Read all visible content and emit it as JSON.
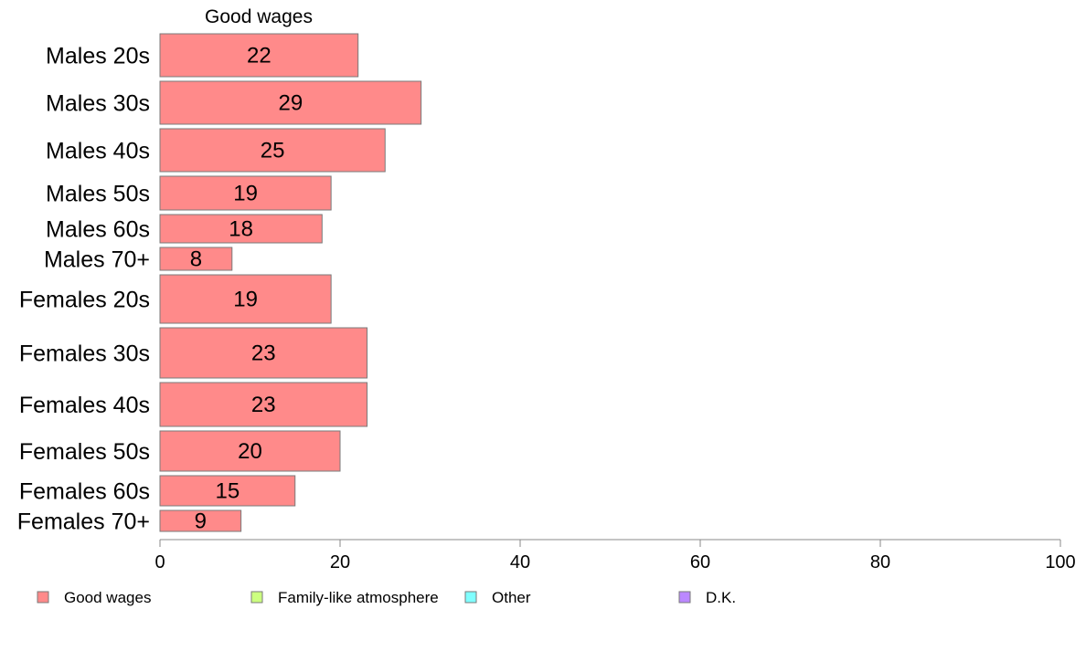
{
  "chart_data": {
    "type": "bar",
    "orientation": "horizontal",
    "stacked": true,
    "title": "",
    "series_title": "Good wages",
    "categories": [
      "Males 20s",
      "Males 30s",
      "Males 40s",
      "Males 50s",
      "Males 60s",
      "Males 70+",
      "Females 20s",
      "Females 30s",
      "Females 40s",
      "Females 50s",
      "Females 60s",
      "Females 70+"
    ],
    "category_weights": [
      47,
      47,
      47,
      37,
      31,
      25,
      53,
      55,
      48,
      44,
      33,
      23
    ],
    "series": [
      {
        "name": "Good wages",
        "color": "#FF8A8A",
        "values": [
          22,
          29,
          25,
          19,
          18,
          8,
          19,
          23,
          23,
          20,
          15,
          9
        ],
        "labels": [
          "22",
          "29",
          "25",
          "19",
          "18",
          "8",
          "19",
          "23",
          "23",
          "20",
          "15",
          "9"
        ]
      }
    ],
    "xlim": [
      0,
      100
    ],
    "xticks": [
      0,
      20,
      40,
      60,
      80,
      100
    ],
    "grid": false,
    "legend": {
      "position": "bottom-left",
      "items": [
        {
          "label": "Good wages",
          "color": "#FF8A8A"
        },
        {
          "label": "Family-like atmosphere",
          "color": "#CCFF80"
        },
        {
          "label": "Other",
          "color": "#80FFFF"
        },
        {
          "label": "D.K.",
          "color": "#BB88FF"
        }
      ]
    }
  }
}
